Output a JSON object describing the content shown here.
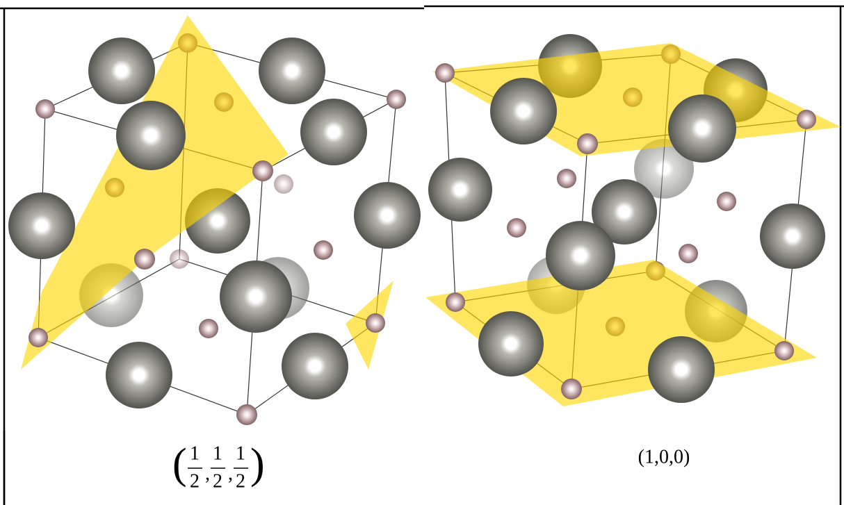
{
  "panels": [
    {
      "label": {
        "open": "(",
        "fractions": [
          {
            "num": "1",
            "den": "2"
          },
          {
            "num": "1",
            "den": "2"
          },
          {
            "num": "1",
            "den": "2"
          }
        ],
        "separators": [
          ",",
          ","
        ],
        "close": ")"
      }
    },
    {
      "label": {
        "text": "(1,0,0)"
      }
    }
  ]
}
